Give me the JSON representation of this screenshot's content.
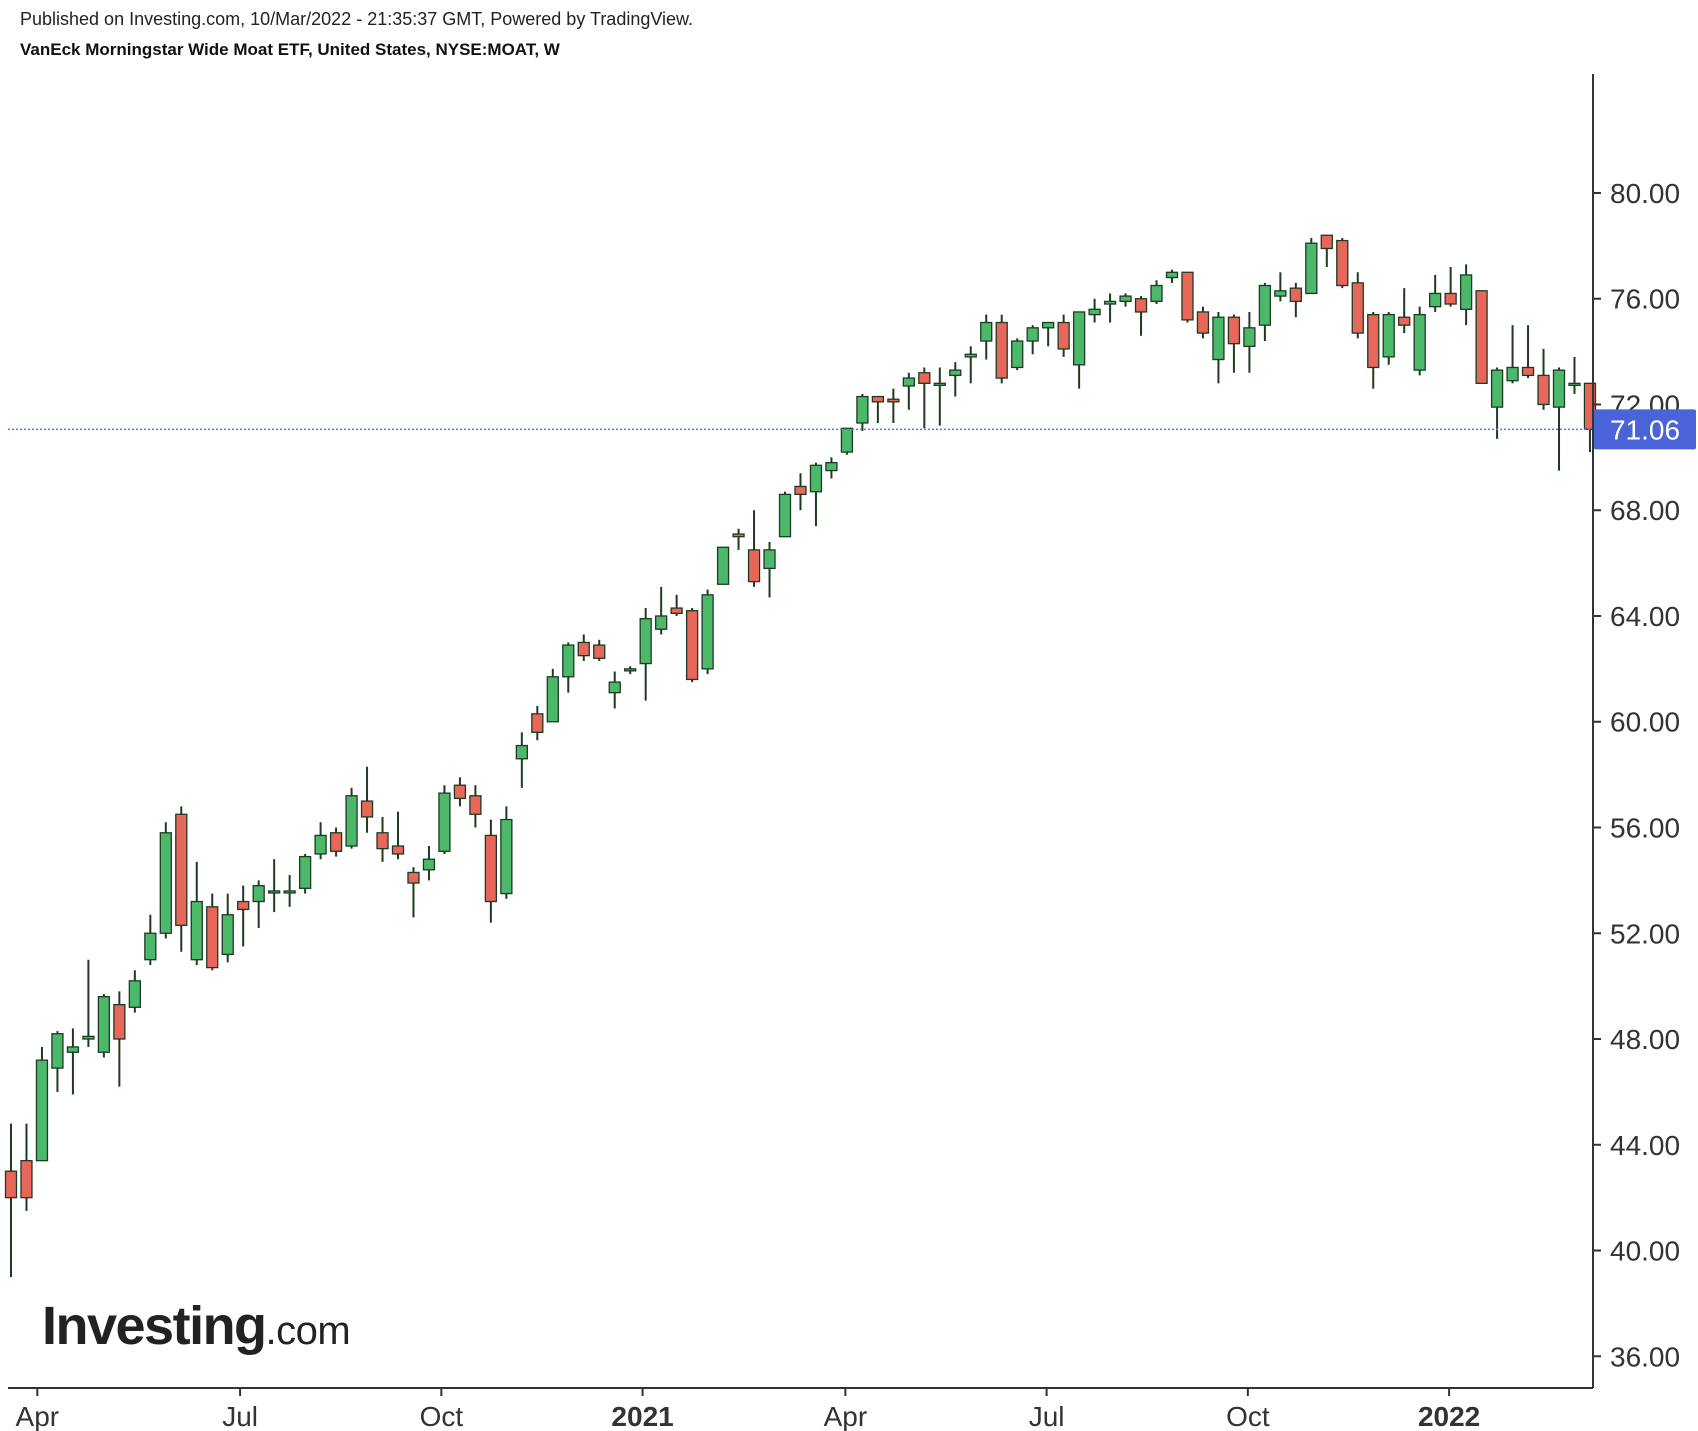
{
  "header": {
    "published": "Published on Investing.com, 10/Mar/2022 - 21:35:37 GMT, Powered by TradingView.",
    "title": "VanEck Morningstar Wide Moat ETF, United States, NYSE:MOAT, W"
  },
  "logo": {
    "main": "Investing",
    "suffix": ".com"
  },
  "colors": {
    "up": "#4cb86a",
    "down": "#e8675b",
    "wick": "#1e3a22",
    "axis": "#333333",
    "last_price_bg": "#4a63d6",
    "last_price_line": "#5d78e0"
  },
  "chart_data": {
    "type": "candlestick",
    "title": "VanEck Morningstar Wide Moat ETF, United States, NYSE:MOAT, W",
    "interval": "W",
    "y_axis": {
      "position": "right",
      "range": [
        34.8,
        84.5
      ],
      "ticks": [
        "36.00",
        "40.00",
        "44.00",
        "48.00",
        "52.00",
        "56.00",
        "60.00",
        "64.00",
        "68.00",
        "72.00",
        "76.00",
        "80.00"
      ]
    },
    "x_axis": {
      "labels": [
        "Apr",
        "Jul",
        "Oct",
        "2021",
        "Apr",
        "Jul",
        "Oct",
        "2022"
      ],
      "bold_labels": [
        "2021",
        "2022"
      ],
      "label_week_index": [
        1.7,
        14.8,
        27.8,
        40.8,
        53.9,
        66.9,
        79.9,
        92.9
      ]
    },
    "last_price": {
      "value": "71.06",
      "y": 71.06
    },
    "grid": false,
    "candles": [
      {
        "o": 43.0,
        "h": 44.8,
        "l": 39.0,
        "c": 42.0
      },
      {
        "o": 43.4,
        "h": 44.8,
        "l": 41.5,
        "c": 42.0
      },
      {
        "o": 43.4,
        "h": 47.7,
        "l": 43.4,
        "c": 47.2
      },
      {
        "o": 46.9,
        "h": 48.3,
        "l": 46.0,
        "c": 48.2
      },
      {
        "o": 47.5,
        "h": 48.4,
        "l": 45.9,
        "c": 47.7
      },
      {
        "o": 48.0,
        "h": 51.0,
        "l": 47.7,
        "c": 48.1
      },
      {
        "o": 47.5,
        "h": 49.7,
        "l": 47.3,
        "c": 49.6
      },
      {
        "o": 49.3,
        "h": 49.8,
        "l": 46.2,
        "c": 48.0
      },
      {
        "o": 49.2,
        "h": 50.6,
        "l": 49.0,
        "c": 50.2
      },
      {
        "o": 51.0,
        "h": 52.7,
        "l": 50.8,
        "c": 52.0
      },
      {
        "o": 52.0,
        "h": 56.2,
        "l": 51.8,
        "c": 55.8
      },
      {
        "o": 56.5,
        "h": 56.8,
        "l": 51.3,
        "c": 52.3
      },
      {
        "o": 51.0,
        "h": 54.7,
        "l": 50.8,
        "c": 53.2
      },
      {
        "o": 53.0,
        "h": 53.5,
        "l": 50.6,
        "c": 50.7
      },
      {
        "o": 51.2,
        "h": 53.5,
        "l": 50.9,
        "c": 52.7
      },
      {
        "o": 53.2,
        "h": 53.8,
        "l": 51.5,
        "c": 52.9
      },
      {
        "o": 53.2,
        "h": 54.0,
        "l": 52.2,
        "c": 53.8
      },
      {
        "o": 53.6,
        "h": 54.8,
        "l": 52.8,
        "c": 53.6
      },
      {
        "o": 53.6,
        "h": 54.2,
        "l": 53.0,
        "c": 53.6
      },
      {
        "o": 53.7,
        "h": 55.0,
        "l": 53.5,
        "c": 54.9
      },
      {
        "o": 55.0,
        "h": 56.2,
        "l": 54.8,
        "c": 55.7
      },
      {
        "o": 55.8,
        "h": 56.0,
        "l": 54.9,
        "c": 55.1
      },
      {
        "o": 55.3,
        "h": 57.5,
        "l": 55.2,
        "c": 57.2
      },
      {
        "o": 57.0,
        "h": 58.3,
        "l": 55.8,
        "c": 56.4
      },
      {
        "o": 55.8,
        "h": 56.4,
        "l": 54.7,
        "c": 55.2
      },
      {
        "o": 55.3,
        "h": 56.6,
        "l": 54.8,
        "c": 55.0
      },
      {
        "o": 54.3,
        "h": 54.5,
        "l": 52.6,
        "c": 53.9
      },
      {
        "o": 54.4,
        "h": 55.3,
        "l": 54.0,
        "c": 54.8
      },
      {
        "o": 55.1,
        "h": 57.6,
        "l": 55.0,
        "c": 57.3
      },
      {
        "o": 57.6,
        "h": 57.9,
        "l": 56.8,
        "c": 57.1
      },
      {
        "o": 57.2,
        "h": 57.6,
        "l": 56.0,
        "c": 56.5
      },
      {
        "o": 55.7,
        "h": 56.3,
        "l": 52.4,
        "c": 53.2
      },
      {
        "o": 53.5,
        "h": 56.8,
        "l": 53.3,
        "c": 56.3
      },
      {
        "o": 58.6,
        "h": 59.6,
        "l": 57.5,
        "c": 59.1
      },
      {
        "o": 60.3,
        "h": 60.6,
        "l": 59.3,
        "c": 59.6
      },
      {
        "o": 60.0,
        "h": 62.0,
        "l": 60.0,
        "c": 61.7
      },
      {
        "o": 61.7,
        "h": 63.0,
        "l": 61.1,
        "c": 62.9
      },
      {
        "o": 63.0,
        "h": 63.3,
        "l": 62.3,
        "c": 62.5
      },
      {
        "o": 62.9,
        "h": 63.1,
        "l": 62.3,
        "c": 62.4
      },
      {
        "o": 61.1,
        "h": 61.9,
        "l": 60.5,
        "c": 61.5
      },
      {
        "o": 62.0,
        "h": 62.1,
        "l": 61.8,
        "c": 62.0
      },
      {
        "o": 62.2,
        "h": 64.3,
        "l": 60.8,
        "c": 63.9
      },
      {
        "o": 63.5,
        "h": 65.1,
        "l": 63.3,
        "c": 64.0
      },
      {
        "o": 64.3,
        "h": 64.8,
        "l": 64.0,
        "c": 64.1
      },
      {
        "o": 64.2,
        "h": 64.3,
        "l": 61.5,
        "c": 61.6
      },
      {
        "o": 62.0,
        "h": 65.0,
        "l": 61.8,
        "c": 64.8
      },
      {
        "o": 65.2,
        "h": 66.6,
        "l": 65.2,
        "c": 66.6
      },
      {
        "o": 67.1,
        "h": 67.3,
        "l": 66.5,
        "c": 67.0
      },
      {
        "o": 66.5,
        "h": 68.0,
        "l": 65.1,
        "c": 65.3
      },
      {
        "o": 65.8,
        "h": 66.8,
        "l": 64.7,
        "c": 66.5
      },
      {
        "o": 67.0,
        "h": 68.7,
        "l": 67.0,
        "c": 68.6
      },
      {
        "o": 68.9,
        "h": 69.4,
        "l": 68.0,
        "c": 68.6
      },
      {
        "o": 68.7,
        "h": 69.8,
        "l": 67.4,
        "c": 69.7
      },
      {
        "o": 69.5,
        "h": 70.0,
        "l": 69.2,
        "c": 69.8
      },
      {
        "o": 70.2,
        "h": 71.1,
        "l": 70.1,
        "c": 71.1
      },
      {
        "o": 71.3,
        "h": 72.4,
        "l": 71.0,
        "c": 72.3
      },
      {
        "o": 72.3,
        "h": 72.3,
        "l": 71.3,
        "c": 72.1
      },
      {
        "o": 72.2,
        "h": 72.6,
        "l": 71.3,
        "c": 72.1
      },
      {
        "o": 72.7,
        "h": 73.2,
        "l": 71.8,
        "c": 73.0
      },
      {
        "o": 73.2,
        "h": 73.4,
        "l": 71.1,
        "c": 72.8
      },
      {
        "o": 72.8,
        "h": 73.4,
        "l": 71.2,
        "c": 72.8
      },
      {
        "o": 73.1,
        "h": 73.6,
        "l": 72.3,
        "c": 73.3
      },
      {
        "o": 73.8,
        "h": 74.2,
        "l": 72.8,
        "c": 73.9
      },
      {
        "o": 74.4,
        "h": 75.4,
        "l": 73.7,
        "c": 75.1
      },
      {
        "o": 75.1,
        "h": 75.4,
        "l": 72.8,
        "c": 73.0
      },
      {
        "o": 73.4,
        "h": 74.5,
        "l": 73.3,
        "c": 74.4
      },
      {
        "o": 74.4,
        "h": 75.0,
        "l": 73.9,
        "c": 74.9
      },
      {
        "o": 74.9,
        "h": 75.1,
        "l": 74.2,
        "c": 75.1
      },
      {
        "o": 75.1,
        "h": 75.4,
        "l": 73.8,
        "c": 74.1
      },
      {
        "o": 73.5,
        "h": 75.5,
        "l": 72.6,
        "c": 75.5
      },
      {
        "o": 75.4,
        "h": 76.0,
        "l": 75.1,
        "c": 75.6
      },
      {
        "o": 75.8,
        "h": 76.2,
        "l": 75.1,
        "c": 75.9
      },
      {
        "o": 75.9,
        "h": 76.2,
        "l": 75.7,
        "c": 76.1
      },
      {
        "o": 76.0,
        "h": 76.1,
        "l": 74.6,
        "c": 75.5
      },
      {
        "o": 75.9,
        "h": 76.7,
        "l": 75.8,
        "c": 76.5
      },
      {
        "o": 76.8,
        "h": 77.1,
        "l": 76.6,
        "c": 77.0
      },
      {
        "o": 77.0,
        "h": 77.0,
        "l": 75.1,
        "c": 75.2
      },
      {
        "o": 75.5,
        "h": 75.7,
        "l": 74.5,
        "c": 74.7
      },
      {
        "o": 73.7,
        "h": 75.5,
        "l": 72.8,
        "c": 75.3
      },
      {
        "o": 75.3,
        "h": 75.4,
        "l": 73.2,
        "c": 74.3
      },
      {
        "o": 74.2,
        "h": 75.5,
        "l": 73.2,
        "c": 74.9
      },
      {
        "o": 75.0,
        "h": 76.6,
        "l": 74.4,
        "c": 76.5
      },
      {
        "o": 76.1,
        "h": 77.0,
        "l": 75.9,
        "c": 76.3
      },
      {
        "o": 76.4,
        "h": 76.6,
        "l": 75.3,
        "c": 75.9
      },
      {
        "o": 76.2,
        "h": 78.3,
        "l": 76.2,
        "c": 78.1
      },
      {
        "o": 78.4,
        "h": 78.4,
        "l": 77.2,
        "c": 77.9
      },
      {
        "o": 78.2,
        "h": 78.3,
        "l": 76.4,
        "c": 76.5
      },
      {
        "o": 76.6,
        "h": 77.0,
        "l": 74.5,
        "c": 74.7
      },
      {
        "o": 75.4,
        "h": 75.5,
        "l": 72.6,
        "c": 73.4
      },
      {
        "o": 73.8,
        "h": 75.5,
        "l": 73.5,
        "c": 75.4
      },
      {
        "o": 75.3,
        "h": 76.4,
        "l": 74.7,
        "c": 75.0
      },
      {
        "o": 73.3,
        "h": 75.7,
        "l": 73.1,
        "c": 75.4
      },
      {
        "o": 75.7,
        "h": 76.9,
        "l": 75.5,
        "c": 76.2
      },
      {
        "o": 76.2,
        "h": 77.2,
        "l": 75.7,
        "c": 75.8
      },
      {
        "o": 75.6,
        "h": 77.3,
        "l": 75.0,
        "c": 76.9
      },
      {
        "o": 76.3,
        "h": 76.3,
        "l": 72.8,
        "c": 72.8
      },
      {
        "o": 71.9,
        "h": 73.4,
        "l": 70.7,
        "c": 73.3
      },
      {
        "o": 72.9,
        "h": 75.0,
        "l": 72.8,
        "c": 73.4
      },
      {
        "o": 73.4,
        "h": 75.0,
        "l": 73.0,
        "c": 73.1
      },
      {
        "o": 73.1,
        "h": 74.1,
        "l": 71.8,
        "c": 72.0
      },
      {
        "o": 71.9,
        "h": 73.4,
        "l": 69.5,
        "c": 73.3
      },
      {
        "o": 72.8,
        "h": 73.8,
        "l": 72.4,
        "c": 72.8
      },
      {
        "o": 72.8,
        "h": 72.8,
        "l": 70.2,
        "c": 71.06
      }
    ]
  }
}
